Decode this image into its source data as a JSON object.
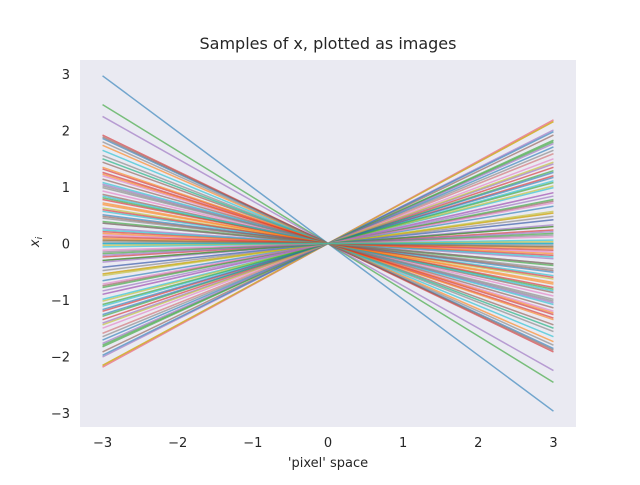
{
  "chart_data": {
    "type": "line",
    "title": "Samples of x, plotted as images",
    "xlabel": "'pixel' space",
    "ylabel_base": "x",
    "ylabel_subscript": "i",
    "xlim": [
      -3.3,
      3.3
    ],
    "ylim": [
      -3.25,
      3.25
    ],
    "xticks": [
      -3,
      -2,
      -1,
      0,
      1,
      2,
      3
    ],
    "xtick_labels": [
      "−3",
      "−2",
      "−1",
      "0",
      "1",
      "2",
      "3"
    ],
    "yticks": [
      -3,
      -2,
      -1,
      0,
      1,
      2,
      3
    ],
    "ytick_labels": [
      "−3",
      "−2",
      "−1",
      "0",
      "1",
      "2",
      "3"
    ],
    "grid": false,
    "background": "#eaeaf2",
    "line_colors": [
      "#1f77b4",
      "#ff7f0e",
      "#2ca02c",
      "#d62728",
      "#9467bd",
      "#8c564b",
      "#e377c2",
      "#7f7f7f",
      "#bcbd22",
      "#17becf"
    ],
    "line_alpha": 0.6,
    "x_range": [
      -3,
      3
    ],
    "slopes": [
      -0.99,
      0.73,
      -0.82,
      0.4,
      -0.75,
      0.64,
      -0.4,
      0.55,
      -0.5,
      0.33,
      -0.62,
      0.72,
      -0.27,
      0.45,
      -0.35,
      0.25,
      -0.31,
      0.16,
      -0.21,
      0.37,
      -0.17,
      0.18,
      -0.13,
      0.08,
      -0.09,
      0.1,
      -0.05,
      0.05,
      -0.02,
      0.02,
      0.0,
      -0.03,
      0.06,
      -0.07,
      0.11,
      -0.12,
      0.14,
      -0.15,
      0.19,
      -0.19,
      0.22,
      -0.23,
      0.26,
      -0.26,
      0.28,
      -0.29,
      0.3,
      -0.33,
      0.34,
      -0.36,
      0.39,
      -0.41,
      0.43,
      -0.44,
      0.47,
      -0.48,
      0.5,
      -0.52,
      0.53,
      -0.55,
      0.57,
      -0.58,
      0.6,
      -0.64,
      0.67,
      -0.63,
      0.73,
      -0.6,
      0.72,
      -0.5,
      0.66,
      -0.45,
      0.61,
      -0.42,
      0.59,
      -0.38,
      0.53,
      -0.34,
      0.48,
      -0.28,
      0.42,
      -0.24,
      0.36,
      -0.2,
      0.3,
      -0.16,
      0.24,
      -0.12,
      0.18,
      -0.08,
      0.14,
      -0.06,
      0.1,
      -0.04,
      0.07,
      -0.02,
      0.04,
      -0.01,
      0.01,
      0.0
    ]
  }
}
